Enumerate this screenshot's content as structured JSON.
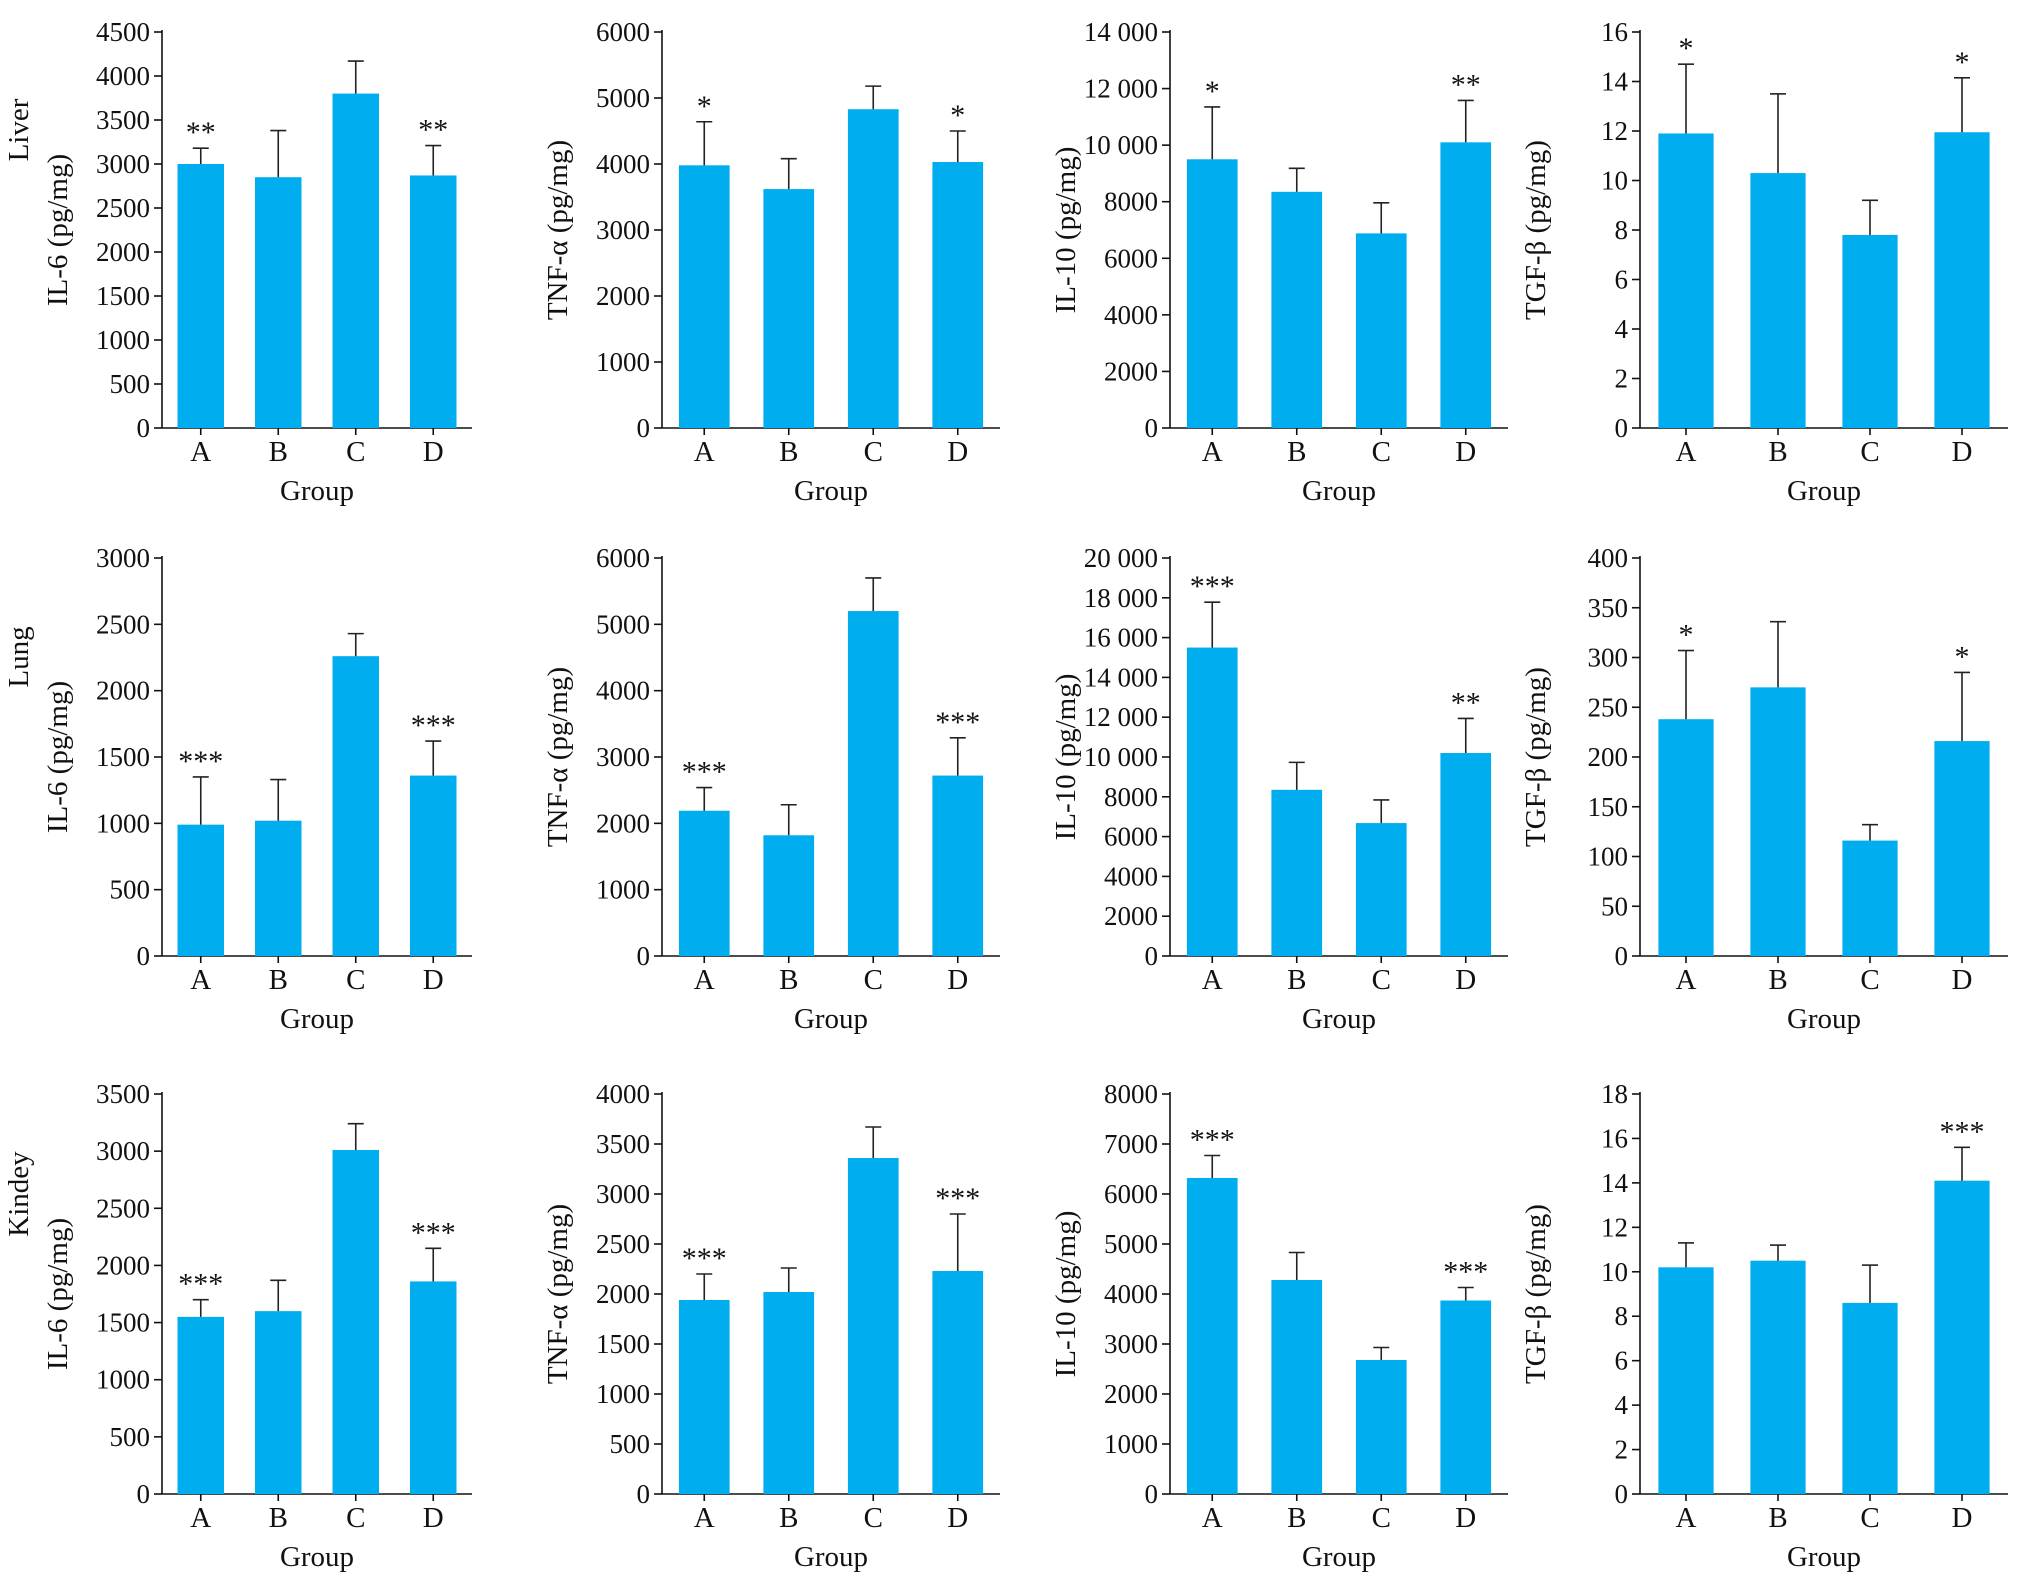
{
  "figure": {
    "bar_color": "#00AEEF",
    "axis_color": "#111111"
  },
  "chart_data": [
    {
      "type": "bar",
      "row_label": "Liver",
      "ylabel": "IL-6 (pg/mg)",
      "xlabel": "Group",
      "categories": [
        "A",
        "B",
        "C",
        "D"
      ],
      "values": [
        3000,
        2850,
        3800,
        2870
      ],
      "errors": [
        180,
        530,
        370,
        340
      ],
      "significance": [
        "**",
        "",
        "",
        "**"
      ],
      "ylim": [
        0,
        4500
      ],
      "yticks": [
        "0",
        "500",
        "1000",
        "1500",
        "2000",
        "2500",
        "3000",
        "3500",
        "4000",
        "4500"
      ]
    },
    {
      "type": "bar",
      "ylabel": "TNF-α (pg/mg)",
      "xlabel": "Group",
      "categories": [
        "A",
        "B",
        "C",
        "D"
      ],
      "values": [
        3980,
        3620,
        4830,
        4030
      ],
      "errors": [
        660,
        460,
        350,
        470
      ],
      "significance": [
        "*",
        "",
        "",
        "*"
      ],
      "ylim": [
        0,
        6000
      ],
      "yticks": [
        "0",
        "1000",
        "2000",
        "3000",
        "4000",
        "5000",
        "6000"
      ]
    },
    {
      "type": "bar",
      "ylabel": "IL-10 (pg/mg)",
      "xlabel": "Group",
      "categories": [
        "A",
        "B",
        "C",
        "D"
      ],
      "values": [
        9500,
        8350,
        6880,
        10100
      ],
      "errors": [
        1850,
        830,
        1080,
        1480
      ],
      "significance": [
        "*",
        "",
        "",
        "**"
      ],
      "ylim": [
        0,
        14000
      ],
      "yticks": [
        "0",
        "2000",
        "4000",
        "6000",
        "8000",
        "10 000",
        "12 000",
        "14 000"
      ]
    },
    {
      "type": "bar",
      "ylabel": "TGF-β (pg/mg)",
      "xlabel": "Group",
      "categories": [
        "A",
        "B",
        "C",
        "D"
      ],
      "values": [
        11.9,
        10.3,
        7.8,
        11.95
      ],
      "errors": [
        2.8,
        3.2,
        1.4,
        2.2
      ],
      "significance": [
        "*",
        "",
        "",
        "*"
      ],
      "ylim": [
        0,
        16
      ],
      "yticks": [
        "0",
        "2",
        "4",
        "6",
        "8",
        "10",
        "12",
        "14",
        "16"
      ]
    },
    {
      "type": "bar",
      "row_label": "Lung",
      "ylabel": "IL-6 (pg/mg)",
      "xlabel": "Group",
      "categories": [
        "A",
        "B",
        "C",
        "D"
      ],
      "values": [
        990,
        1020,
        2260,
        1360
      ],
      "errors": [
        360,
        310,
        170,
        260
      ],
      "significance": [
        "***",
        "",
        "",
        "***"
      ],
      "ylim": [
        0,
        3000
      ],
      "yticks": [
        "0",
        "500",
        "1000",
        "1500",
        "2000",
        "2500",
        "3000"
      ]
    },
    {
      "type": "bar",
      "ylabel": "TNF-α (pg/mg)",
      "xlabel": "Group",
      "categories": [
        "A",
        "B",
        "C",
        "D"
      ],
      "values": [
        2190,
        1820,
        5200,
        2720
      ],
      "errors": [
        350,
        460,
        500,
        570
      ],
      "significance": [
        "***",
        "",
        "",
        "***"
      ],
      "ylim": [
        0,
        6000
      ],
      "yticks": [
        "0",
        "1000",
        "2000",
        "3000",
        "4000",
        "5000",
        "6000"
      ]
    },
    {
      "type": "bar",
      "ylabel": "IL-10 (pg/mg)",
      "xlabel": "Group",
      "categories": [
        "A",
        "B",
        "C",
        "D"
      ],
      "values": [
        15500,
        8350,
        6680,
        10200
      ],
      "errors": [
        2280,
        1380,
        1160,
        1740
      ],
      "significance": [
        "***",
        "",
        "",
        "**"
      ],
      "ylim": [
        0,
        20000
      ],
      "yticks": [
        "0",
        "2000",
        "4000",
        "6000",
        "8000",
        "10 000",
        "12 000",
        "14 000",
        "16 000",
        "18 000",
        "20 000"
      ]
    },
    {
      "type": "bar",
      "ylabel": "TGF-β (pg/mg)",
      "xlabel": "Group",
      "categories": [
        "A",
        "B",
        "C",
        "D"
      ],
      "values": [
        238,
        270,
        116,
        216
      ],
      "errors": [
        69,
        66,
        16,
        69
      ],
      "significance": [
        "*",
        "",
        "",
        "*"
      ],
      "ylim": [
        0,
        400
      ],
      "yticks": [
        "0",
        "50",
        "100",
        "150",
        "200",
        "250",
        "300",
        "350",
        "400"
      ]
    },
    {
      "type": "bar",
      "row_label": "Kindey",
      "ylabel": "IL-6 (pg/mg)",
      "xlabel": "Group",
      "categories": [
        "A",
        "B",
        "C",
        "D"
      ],
      "values": [
        1550,
        1600,
        3010,
        1860
      ],
      "errors": [
        150,
        270,
        230,
        290
      ],
      "significance": [
        "***",
        "",
        "",
        "***"
      ],
      "ylim": [
        0,
        3500
      ],
      "yticks": [
        "0",
        "500",
        "1000",
        "1500",
        "2000",
        "2500",
        "3000",
        "3500"
      ]
    },
    {
      "type": "bar",
      "ylabel": "TNF-α (pg/mg)",
      "xlabel": "Group",
      "categories": [
        "A",
        "B",
        "C",
        "D"
      ],
      "values": [
        1940,
        2020,
        3360,
        2230
      ],
      "errors": [
        260,
        240,
        310,
        570
      ],
      "significance": [
        "***",
        "",
        "",
        "***"
      ],
      "ylim": [
        0,
        4000
      ],
      "yticks": [
        "0",
        "500",
        "1000",
        "1500",
        "2000",
        "2500",
        "3000",
        "3500",
        "4000"
      ]
    },
    {
      "type": "bar",
      "ylabel": "IL-10 (pg/mg)",
      "xlabel": "Group",
      "categories": [
        "A",
        "B",
        "C",
        "D"
      ],
      "values": [
        6320,
        4280,
        2680,
        3870
      ],
      "errors": [
        450,
        550,
        250,
        260
      ],
      "significance": [
        "***",
        "",
        "",
        "***"
      ],
      "ylim": [
        0,
        8000
      ],
      "yticks": [
        "0",
        "1000",
        "2000",
        "3000",
        "4000",
        "5000",
        "6000",
        "7000",
        "8000"
      ]
    },
    {
      "type": "bar",
      "ylabel": "TGF-β (pg/mg)",
      "xlabel": "Group",
      "categories": [
        "A",
        "B",
        "C",
        "D"
      ],
      "values": [
        10.2,
        10.5,
        8.6,
        14.1
      ],
      "errors": [
        1.1,
        0.7,
        1.7,
        1.5
      ],
      "significance": [
        "",
        "",
        "",
        "***"
      ],
      "ylim": [
        0,
        18
      ],
      "yticks": [
        "0",
        "2",
        "4",
        "6",
        "8",
        "10",
        "12",
        "14",
        "16",
        "18"
      ]
    }
  ]
}
